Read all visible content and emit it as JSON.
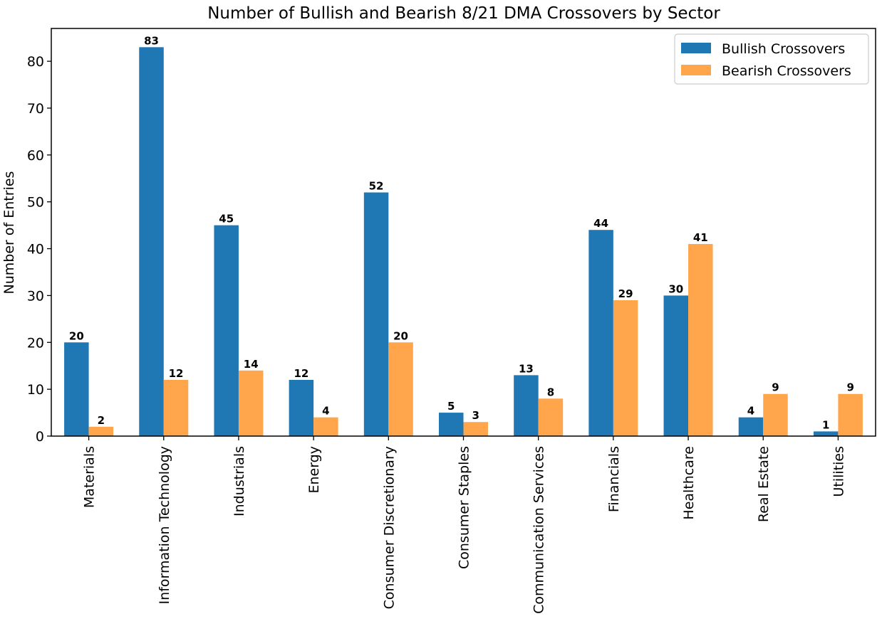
{
  "chart_data": {
    "type": "bar",
    "title": "Number of Bullish and Bearish 8/21 DMA Crossovers by Sector",
    "xlabel": "",
    "ylabel": "Number of Entries",
    "ylim": [
      0,
      87
    ],
    "yticks": [
      0,
      10,
      20,
      30,
      40,
      50,
      60,
      70,
      80
    ],
    "legend_position": "top-right",
    "categories": [
      "Materials",
      "Information Technology",
      "Industrials",
      "Energy",
      "Consumer Discretionary",
      "Consumer Staples",
      "Communication Services",
      "Financials",
      "Healthcare",
      "Real Estate",
      "Utilities"
    ],
    "series": [
      {
        "name": "Bullish Crossovers",
        "color": "#1f77b4",
        "values": [
          20,
          83,
          45,
          12,
          52,
          5,
          13,
          44,
          30,
          4,
          1
        ]
      },
      {
        "name": "Bearish Crossovers",
        "color": "#ffa64d",
        "values": [
          2,
          12,
          14,
          4,
          20,
          3,
          8,
          29,
          41,
          9,
          9
        ]
      }
    ]
  }
}
